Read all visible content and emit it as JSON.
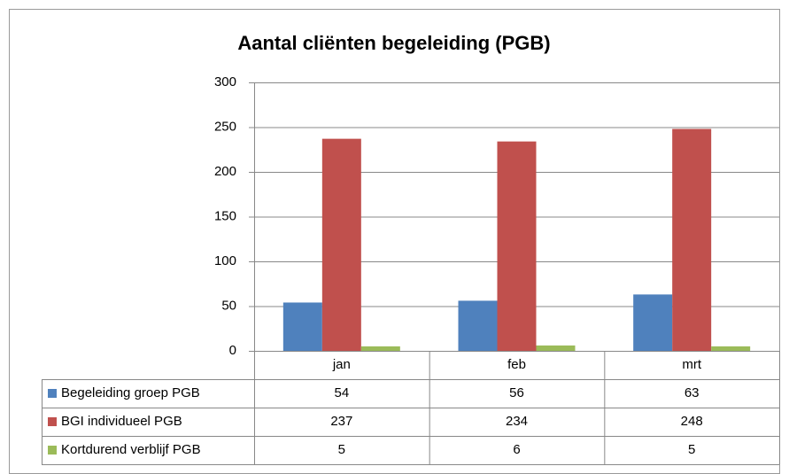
{
  "chart_data": {
    "type": "bar",
    "title": "Aantal cliënten begeleiding (PGB)",
    "categories": [
      "jan",
      "feb",
      "mrt"
    ],
    "series": [
      {
        "name": "Begeleiding groep PGB",
        "color": "#4f81bd",
        "values": [
          54,
          56,
          63
        ]
      },
      {
        "name": "BGI individueel PGB",
        "color": "#c0504d",
        "values": [
          237,
          234,
          248
        ]
      },
      {
        "name": "Kortdurend verblijf PGB",
        "color": "#9bbb59",
        "values": [
          5,
          6,
          5
        ]
      }
    ],
    "ylim": [
      0,
      300
    ],
    "yticks": [
      0,
      50,
      100,
      150,
      200,
      250,
      300
    ],
    "grid": true
  }
}
